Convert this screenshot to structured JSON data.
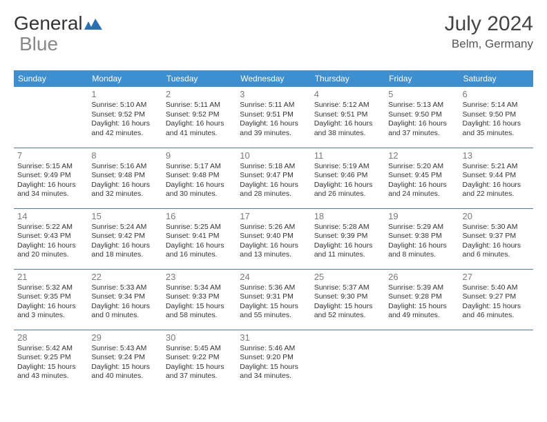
{
  "logo": {
    "part1": "General",
    "part2": "Blue"
  },
  "title": "July 2024",
  "location": "Belm, Germany",
  "headers": [
    "Sunday",
    "Monday",
    "Tuesday",
    "Wednesday",
    "Thursday",
    "Friday",
    "Saturday"
  ],
  "colors": {
    "header_bg": "#3d8fcf",
    "header_text": "#ffffff",
    "row_border": "#4a7aa8",
    "daynum": "#7a7a7a",
    "body_text": "#333333",
    "logo_icon": "#2b6fb3"
  },
  "cells": [
    [
      {
        "day": "",
        "sunrise": "",
        "sunset": "",
        "daylight": ""
      },
      {
        "day": "1",
        "sunrise": "Sunrise: 5:10 AM",
        "sunset": "Sunset: 9:52 PM",
        "daylight": "Daylight: 16 hours and 42 minutes."
      },
      {
        "day": "2",
        "sunrise": "Sunrise: 5:11 AM",
        "sunset": "Sunset: 9:52 PM",
        "daylight": "Daylight: 16 hours and 41 minutes."
      },
      {
        "day": "3",
        "sunrise": "Sunrise: 5:11 AM",
        "sunset": "Sunset: 9:51 PM",
        "daylight": "Daylight: 16 hours and 39 minutes."
      },
      {
        "day": "4",
        "sunrise": "Sunrise: 5:12 AM",
        "sunset": "Sunset: 9:51 PM",
        "daylight": "Daylight: 16 hours and 38 minutes."
      },
      {
        "day": "5",
        "sunrise": "Sunrise: 5:13 AM",
        "sunset": "Sunset: 9:50 PM",
        "daylight": "Daylight: 16 hours and 37 minutes."
      },
      {
        "day": "6",
        "sunrise": "Sunrise: 5:14 AM",
        "sunset": "Sunset: 9:50 PM",
        "daylight": "Daylight: 16 hours and 35 minutes."
      }
    ],
    [
      {
        "day": "7",
        "sunrise": "Sunrise: 5:15 AM",
        "sunset": "Sunset: 9:49 PM",
        "daylight": "Daylight: 16 hours and 34 minutes."
      },
      {
        "day": "8",
        "sunrise": "Sunrise: 5:16 AM",
        "sunset": "Sunset: 9:48 PM",
        "daylight": "Daylight: 16 hours and 32 minutes."
      },
      {
        "day": "9",
        "sunrise": "Sunrise: 5:17 AM",
        "sunset": "Sunset: 9:48 PM",
        "daylight": "Daylight: 16 hours and 30 minutes."
      },
      {
        "day": "10",
        "sunrise": "Sunrise: 5:18 AM",
        "sunset": "Sunset: 9:47 PM",
        "daylight": "Daylight: 16 hours and 28 minutes."
      },
      {
        "day": "11",
        "sunrise": "Sunrise: 5:19 AM",
        "sunset": "Sunset: 9:46 PM",
        "daylight": "Daylight: 16 hours and 26 minutes."
      },
      {
        "day": "12",
        "sunrise": "Sunrise: 5:20 AM",
        "sunset": "Sunset: 9:45 PM",
        "daylight": "Daylight: 16 hours and 24 minutes."
      },
      {
        "day": "13",
        "sunrise": "Sunrise: 5:21 AM",
        "sunset": "Sunset: 9:44 PM",
        "daylight": "Daylight: 16 hours and 22 minutes."
      }
    ],
    [
      {
        "day": "14",
        "sunrise": "Sunrise: 5:22 AM",
        "sunset": "Sunset: 9:43 PM",
        "daylight": "Daylight: 16 hours and 20 minutes."
      },
      {
        "day": "15",
        "sunrise": "Sunrise: 5:24 AM",
        "sunset": "Sunset: 9:42 PM",
        "daylight": "Daylight: 16 hours and 18 minutes."
      },
      {
        "day": "16",
        "sunrise": "Sunrise: 5:25 AM",
        "sunset": "Sunset: 9:41 PM",
        "daylight": "Daylight: 16 hours and 16 minutes."
      },
      {
        "day": "17",
        "sunrise": "Sunrise: 5:26 AM",
        "sunset": "Sunset: 9:40 PM",
        "daylight": "Daylight: 16 hours and 13 minutes."
      },
      {
        "day": "18",
        "sunrise": "Sunrise: 5:28 AM",
        "sunset": "Sunset: 9:39 PM",
        "daylight": "Daylight: 16 hours and 11 minutes."
      },
      {
        "day": "19",
        "sunrise": "Sunrise: 5:29 AM",
        "sunset": "Sunset: 9:38 PM",
        "daylight": "Daylight: 16 hours and 8 minutes."
      },
      {
        "day": "20",
        "sunrise": "Sunrise: 5:30 AM",
        "sunset": "Sunset: 9:37 PM",
        "daylight": "Daylight: 16 hours and 6 minutes."
      }
    ],
    [
      {
        "day": "21",
        "sunrise": "Sunrise: 5:32 AM",
        "sunset": "Sunset: 9:35 PM",
        "daylight": "Daylight: 16 hours and 3 minutes."
      },
      {
        "day": "22",
        "sunrise": "Sunrise: 5:33 AM",
        "sunset": "Sunset: 9:34 PM",
        "daylight": "Daylight: 16 hours and 0 minutes."
      },
      {
        "day": "23",
        "sunrise": "Sunrise: 5:34 AM",
        "sunset": "Sunset: 9:33 PM",
        "daylight": "Daylight: 15 hours and 58 minutes."
      },
      {
        "day": "24",
        "sunrise": "Sunrise: 5:36 AM",
        "sunset": "Sunset: 9:31 PM",
        "daylight": "Daylight: 15 hours and 55 minutes."
      },
      {
        "day": "25",
        "sunrise": "Sunrise: 5:37 AM",
        "sunset": "Sunset: 9:30 PM",
        "daylight": "Daylight: 15 hours and 52 minutes."
      },
      {
        "day": "26",
        "sunrise": "Sunrise: 5:39 AM",
        "sunset": "Sunset: 9:28 PM",
        "daylight": "Daylight: 15 hours and 49 minutes."
      },
      {
        "day": "27",
        "sunrise": "Sunrise: 5:40 AM",
        "sunset": "Sunset: 9:27 PM",
        "daylight": "Daylight: 15 hours and 46 minutes."
      }
    ],
    [
      {
        "day": "28",
        "sunrise": "Sunrise: 5:42 AM",
        "sunset": "Sunset: 9:25 PM",
        "daylight": "Daylight: 15 hours and 43 minutes."
      },
      {
        "day": "29",
        "sunrise": "Sunrise: 5:43 AM",
        "sunset": "Sunset: 9:24 PM",
        "daylight": "Daylight: 15 hours and 40 minutes."
      },
      {
        "day": "30",
        "sunrise": "Sunrise: 5:45 AM",
        "sunset": "Sunset: 9:22 PM",
        "daylight": "Daylight: 15 hours and 37 minutes."
      },
      {
        "day": "31",
        "sunrise": "Sunrise: 5:46 AM",
        "sunset": "Sunset: 9:20 PM",
        "daylight": "Daylight: 15 hours and 34 minutes."
      },
      {
        "day": "",
        "sunrise": "",
        "sunset": "",
        "daylight": ""
      },
      {
        "day": "",
        "sunrise": "",
        "sunset": "",
        "daylight": ""
      },
      {
        "day": "",
        "sunrise": "",
        "sunset": "",
        "daylight": ""
      }
    ]
  ]
}
